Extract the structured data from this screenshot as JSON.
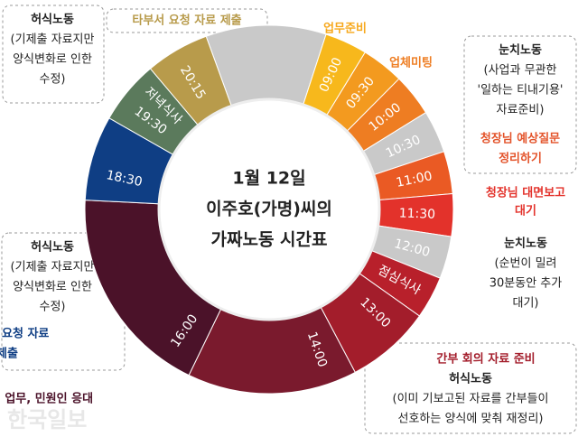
{
  "center": {
    "lines": [
      "1월 12일",
      "이주호(가명)씨의",
      "가짜노동 시간표"
    ]
  },
  "segments": [
    {
      "labels": [
        "09:00"
      ],
      "color": "#f7b81c"
    },
    {
      "labels": [
        "09:30"
      ],
      "color": "#f39a1f"
    },
    {
      "labels": [
        "10:00"
      ],
      "color": "#ee7d22"
    },
    {
      "labels": [
        "10:30"
      ],
      "color": "#c9c9c9"
    },
    {
      "labels": [
        "11:00"
      ],
      "color": "#ea5a24"
    },
    {
      "labels": [
        "11:30"
      ],
      "color": "#e3322b"
    },
    {
      "labels": [
        "12:00"
      ],
      "color": "#c9c9c9"
    },
    {
      "labels": [
        "점심식사"
      ],
      "color": "#b8202b"
    },
    {
      "labels": [
        "13:00"
      ],
      "color": "#a31d2b"
    },
    {
      "labels": [
        "14:00"
      ],
      "color": "#7a1a2d"
    },
    {
      "labels": [
        "16:00"
      ],
      "color": "#4b1229"
    },
    {
      "labels": [
        "18:30"
      ],
      "color": "#0f3e84"
    },
    {
      "labels": [
        "19:30",
        "저녁식사"
      ],
      "color": "#5b7a5c"
    },
    {
      "labels": [
        "20:15"
      ],
      "color": "#b89b4b"
    }
  ],
  "annotations": {
    "top_left": [
      "허식노동",
      "(기제출 자료지만",
      "양식변화로 인한",
      "수정)"
    ],
    "top": "타부서 요청 자료 제출",
    "work_prep": "업무준비",
    "meeting": "업체미팅",
    "right_top": [
      "눈치노동",
      "(사업과 무관한",
      "'일하는 티내기용'",
      "자료준비)"
    ],
    "right_top_red": [
      "청장님 예상질문",
      "정리하기"
    ],
    "right_mid_red": [
      "청장님 대면보고",
      "대기"
    ],
    "right_mid": [
      "눈치노동",
      "(순번이 밀려",
      "30분동안 추가",
      "대기)"
    ],
    "left": [
      "허식노동",
      "(기제출 자료지만",
      "양식변화로 인한",
      "수정)"
    ],
    "left_blue": [
      "타부서 요청 자료",
      "제출"
    ],
    "bottom_left": "개별사업 업무, 민원인 응대",
    "bottom_right_red": "간부 회의 자료 준비",
    "bottom_right": [
      "허식노동",
      "(이미 기보고된 자료를 간부들이",
      "선호하는 양식에 맞춰 재정리)"
    ],
    "watermark": "한국일보"
  }
}
